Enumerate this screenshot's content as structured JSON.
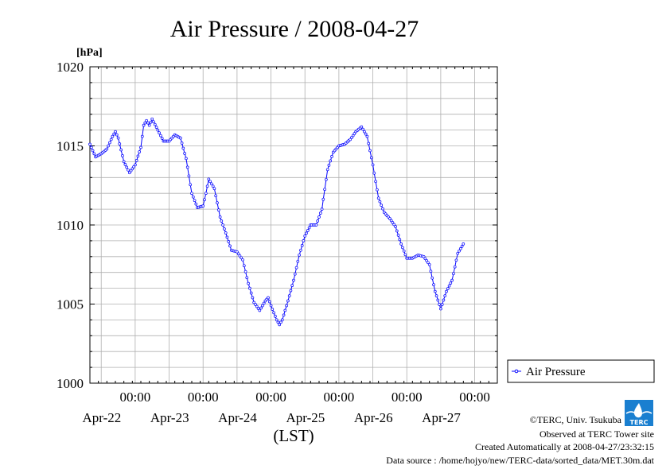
{
  "chart_data": {
    "type": "line",
    "title": "Air Pressure / 2008-04-27",
    "ylabel_unit": "[hPa]",
    "xlabel": "(LST)",
    "ylim": [
      1000,
      1020
    ],
    "yticks": [
      1000,
      1005,
      1010,
      1015,
      1020
    ],
    "xlim": [
      -16,
      128
    ],
    "x_unit": "hours since 2008-04-22 00:00 LST",
    "xticks": [
      {
        "x": 0,
        "time": "00:00",
        "date": "Apr-22"
      },
      {
        "x": 24,
        "time": "00:00",
        "date": "Apr-23"
      },
      {
        "x": 48,
        "time": "00:00",
        "date": "Apr-24"
      },
      {
        "x": 72,
        "time": "00:00",
        "date": "Apr-25"
      },
      {
        "x": 96,
        "time": "00:00",
        "date": "Apr-26"
      },
      {
        "x": 120,
        "time": "00:00",
        "date": "Apr-27"
      }
    ],
    "grid": true,
    "legend_position": "right",
    "series": [
      {
        "name": "Air Pressure",
        "color": "#0000ff",
        "marker": "circle",
        "points": [
          [
            -16,
            1015.1
          ],
          [
            -14,
            1014.3
          ],
          [
            -12,
            1014.5
          ],
          [
            -10,
            1014.8
          ],
          [
            -8,
            1015.6
          ],
          [
            -7,
            1015.9
          ],
          [
            -6,
            1015.5
          ],
          [
            -4,
            1014.0
          ],
          [
            -2,
            1013.3
          ],
          [
            0,
            1013.8
          ],
          [
            2,
            1014.9
          ],
          [
            3,
            1016.3
          ],
          [
            4,
            1016.6
          ],
          [
            5,
            1016.3
          ],
          [
            6,
            1016.7
          ],
          [
            8,
            1016.0
          ],
          [
            10,
            1015.3
          ],
          [
            12,
            1015.3
          ],
          [
            14,
            1015.7
          ],
          [
            16,
            1015.5
          ],
          [
            18,
            1014.2
          ],
          [
            20,
            1012.0
          ],
          [
            22,
            1011.1
          ],
          [
            24,
            1011.2
          ],
          [
            25,
            1012.0
          ],
          [
            26,
            1012.9
          ],
          [
            28,
            1012.3
          ],
          [
            30,
            1010.5
          ],
          [
            32,
            1009.5
          ],
          [
            34,
            1008.4
          ],
          [
            36,
            1008.3
          ],
          [
            38,
            1007.8
          ],
          [
            40,
            1006.3
          ],
          [
            42,
            1005.1
          ],
          [
            44,
            1004.6
          ],
          [
            46,
            1005.2
          ],
          [
            47,
            1005.4
          ],
          [
            48,
            1004.9
          ],
          [
            50,
            1004.0
          ],
          [
            51,
            1003.7
          ],
          [
            52,
            1004.0
          ],
          [
            54,
            1005.2
          ],
          [
            56,
            1006.5
          ],
          [
            58,
            1008.1
          ],
          [
            60,
            1009.3
          ],
          [
            62,
            1010.0
          ],
          [
            64,
            1010.0
          ],
          [
            66,
            1011.0
          ],
          [
            68,
            1013.5
          ],
          [
            70,
            1014.6
          ],
          [
            72,
            1015.0
          ],
          [
            74,
            1015.1
          ],
          [
            76,
            1015.4
          ],
          [
            78,
            1015.9
          ],
          [
            80,
            1016.2
          ],
          [
            82,
            1015.6
          ],
          [
            84,
            1013.8
          ],
          [
            86,
            1011.7
          ],
          [
            88,
            1010.8
          ],
          [
            90,
            1010.4
          ],
          [
            92,
            1009.9
          ],
          [
            94,
            1008.8
          ],
          [
            96,
            1007.9
          ],
          [
            98,
            1007.9
          ],
          [
            100,
            1008.1
          ],
          [
            102,
            1008.0
          ],
          [
            104,
            1007.5
          ],
          [
            106,
            1005.8
          ],
          [
            108,
            1004.7
          ],
          [
            110,
            1005.8
          ],
          [
            112,
            1006.5
          ],
          [
            114,
            1008.2
          ],
          [
            116,
            1008.8
          ]
        ]
      }
    ]
  },
  "credits": {
    "line1": "©TERC, Univ. Tsukuba",
    "line2": "Observed at TERC Tower site",
    "line3": "Created Automatically at 2008-04-27/23:32:15",
    "line4": "Data source : /home/hojyo/new/TERC-data/sorted_data/MET.30m.dat"
  },
  "logo": {
    "icon": "terc-logo-icon",
    "text": "TERC"
  }
}
